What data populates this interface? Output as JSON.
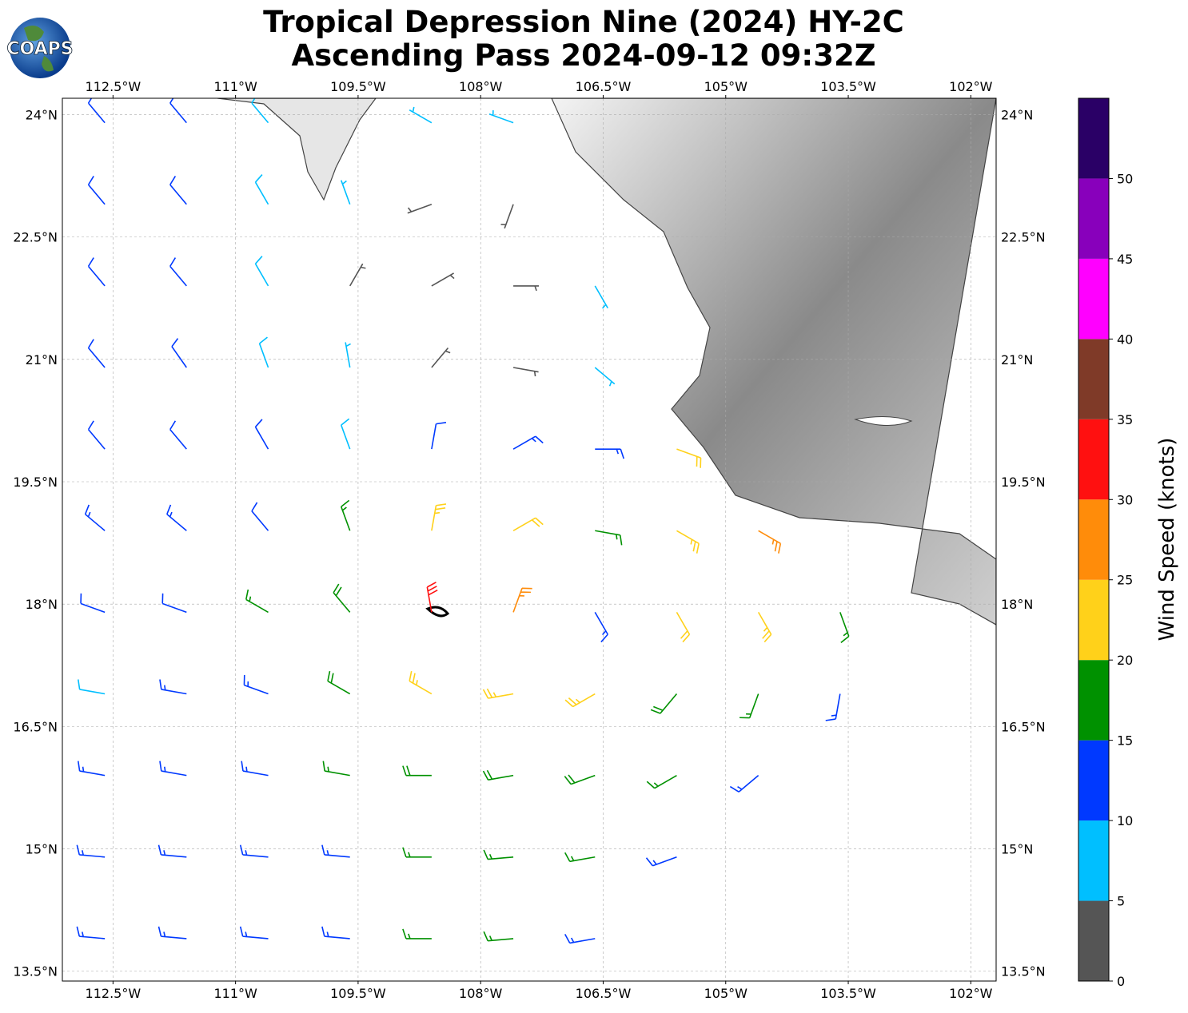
{
  "chart_data": {
    "type": "wind-barbs",
    "logo": "COAPS",
    "title": "Tropical Depression Nine (2024) HY-2C",
    "subtitle": "Ascending Pass 2024-09-12 09:32Z",
    "xlim": [
      -113.12,
      -101.69
    ],
    "ylim": [
      13.38,
      24.2
    ],
    "xticks": [
      {
        "value": -112.5,
        "label": "112.5°W"
      },
      {
        "value": -111,
        "label": "111°W"
      },
      {
        "value": -109.5,
        "label": "109.5°W"
      },
      {
        "value": -108,
        "label": "108°W"
      },
      {
        "value": -106.5,
        "label": "106.5°W"
      },
      {
        "value": -105,
        "label": "105°W"
      },
      {
        "value": -103.5,
        "label": "103.5°W"
      },
      {
        "value": -102,
        "label": "102°W"
      }
    ],
    "yticks": [
      {
        "value": 24,
        "label": "24°N"
      },
      {
        "value": 22.5,
        "label": "22.5°N"
      },
      {
        "value": 21,
        "label": "21°N"
      },
      {
        "value": 19.5,
        "label": "19.5°N"
      },
      {
        "value": 18,
        "label": "18°N"
      },
      {
        "value": 16.5,
        "label": "16.5°N"
      },
      {
        "value": 15,
        "label": "15°N"
      },
      {
        "value": 13.5,
        "label": "13.5°N"
      }
    ],
    "grid": true,
    "lons": [
      -112.6,
      -111.6,
      -110.6,
      -109.6,
      -108.6,
      -107.6,
      -106.6,
      -105.6,
      -104.6,
      -103.6,
      -102.6
    ],
    "lats": [
      23.9,
      22.9,
      21.9,
      20.9,
      19.9,
      18.9,
      17.9,
      16.9,
      15.9,
      14.9,
      13.9
    ],
    "speed": [
      [
        12,
        12,
        8,
        null,
        7,
        6,
        null,
        null,
        null,
        null,
        null
      ],
      [
        12,
        11,
        8,
        7,
        4,
        4,
        null,
        null,
        null,
        null,
        null
      ],
      [
        12,
        11,
        8,
        3,
        3,
        3,
        7,
        null,
        null,
        null,
        null
      ],
      [
        12,
        11,
        8,
        6,
        3,
        3,
        7,
        null,
        null,
        null,
        null
      ],
      [
        12,
        12,
        11,
        9,
        12,
        13,
        14,
        20,
        null,
        null,
        null
      ],
      [
        13,
        13,
        12,
        16,
        24,
        22,
        16,
        24,
        26,
        null,
        null
      ],
      [
        11,
        12,
        15,
        19,
        32,
        26,
        14,
        22,
        24,
        17,
        null
      ],
      [
        8,
        13,
        14,
        18,
        23,
        23,
        24,
        19,
        16,
        13,
        null
      ],
      [
        13,
        13,
        14,
        16,
        18,
        19,
        18,
        16,
        14,
        null,
        null
      ],
      [
        13,
        13,
        13,
        14,
        16,
        17,
        16,
        14,
        null,
        null,
        null
      ],
      [
        13,
        13,
        13,
        14,
        17,
        16,
        14,
        null,
        null,
        null,
        null
      ]
    ],
    "direction": [
      [
        320,
        320,
        320,
        null,
        300,
        290,
        null,
        null,
        null,
        null,
        null
      ],
      [
        320,
        320,
        330,
        340,
        250,
        200,
        null,
        null,
        null,
        null,
        null
      ],
      [
        320,
        320,
        330,
        30,
        60,
        90,
        150,
        null,
        null,
        null,
        null
      ],
      [
        320,
        325,
        340,
        350,
        40,
        100,
        130,
        null,
        null,
        null,
        null
      ],
      [
        320,
        320,
        330,
        340,
        10,
        60,
        90,
        110,
        null,
        null,
        null
      ],
      [
        310,
        310,
        320,
        340,
        10,
        60,
        100,
        120,
        120,
        null,
        null
      ],
      [
        290,
        290,
        300,
        320,
        350,
        20,
        150,
        150,
        150,
        160,
        null
      ],
      [
        280,
        280,
        290,
        300,
        300,
        260,
        240,
        220,
        200,
        190,
        null
      ],
      [
        280,
        280,
        280,
        280,
        270,
        260,
        250,
        240,
        230,
        null,
        null
      ],
      [
        275,
        275,
        275,
        275,
        270,
        265,
        260,
        250,
        null,
        null,
        null
      ],
      [
        275,
        275,
        275,
        275,
        270,
        265,
        260,
        null,
        null,
        null,
        null
      ]
    ],
    "colorbar": {
      "label": "Wind Speed (knots)",
      "bounds": [
        0,
        5,
        10,
        15,
        20,
        25,
        30,
        35,
        40,
        45,
        50,
        55
      ],
      "colors": [
        "#555555",
        "#00bfff",
        "#0039ff",
        "#009100",
        "#ffd11a",
        "#ff8c0a",
        "#ff1010",
        "#7f3a28",
        "#ff00ff",
        "#8800bb",
        "#2a0066"
      ],
      "ticks": [
        0,
        5,
        10,
        15,
        20,
        25,
        30,
        35,
        40,
        45,
        50
      ]
    }
  }
}
